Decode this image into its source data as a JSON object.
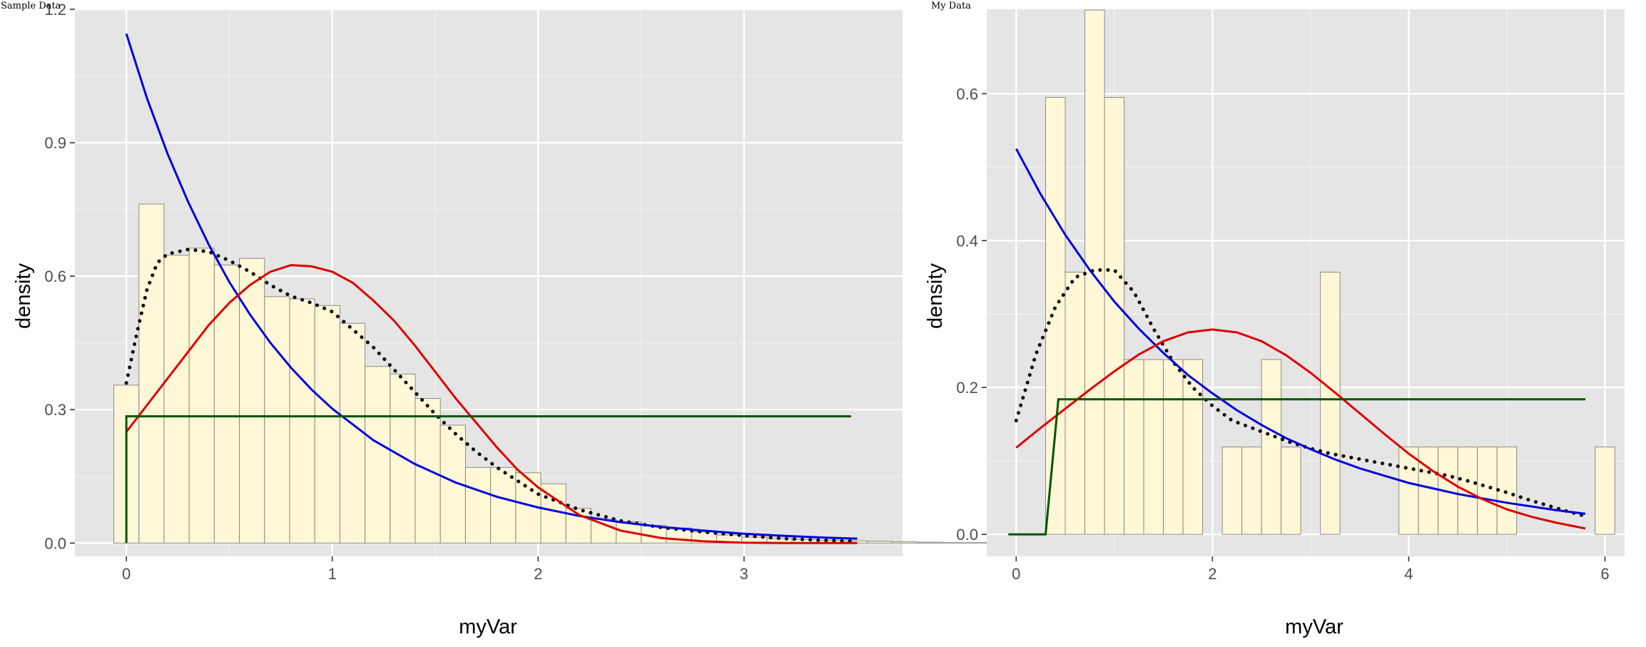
{
  "chart_data": [
    {
      "type": "bar",
      "title": "Sample Data",
      "xlabel": "myVar",
      "ylabel": "density",
      "xlim": [
        -0.25,
        3.77
      ],
      "ylim": [
        -0.03,
        1.2
      ],
      "xticks": [
        0,
        1,
        2,
        3
      ],
      "yticks": [
        0.0,
        0.3,
        0.6,
        0.9,
        1.2
      ],
      "ytick_labels": [
        "0.0",
        "0.3",
        "0.6",
        "0.9",
        "1.2"
      ],
      "grid": true,
      "histogram": {
        "bin_width": 0.122,
        "first_bin_left": -0.061,
        "values": [
          0.355,
          0.762,
          0.647,
          0.663,
          0.625,
          0.64,
          0.554,
          0.549,
          0.534,
          0.494,
          0.397,
          0.38,
          0.325,
          0.265,
          0.17,
          0.17,
          0.158,
          0.133,
          0.078,
          0.053,
          0.048,
          0.04,
          0.034,
          0.025,
          0.018,
          0.013,
          0.01,
          0.008,
          0.006,
          0.005,
          0.004,
          0.003,
          0.002,
          0.001,
          0.001,
          0.001,
          0.0,
          0.0,
          0.0,
          0.0,
          0.0,
          0.0,
          0.004
        ]
      },
      "series": [
        {
          "color": "#000000",
          "style": "dotted",
          "x": [
            0.0,
            0.05,
            0.1,
            0.15,
            0.2,
            0.3,
            0.4,
            0.5,
            0.6,
            0.7,
            0.8,
            0.9,
            1.0,
            1.1,
            1.2,
            1.3,
            1.4,
            1.5,
            1.6,
            1.7,
            1.8,
            1.9,
            2.0,
            2.2,
            2.4,
            2.6,
            2.8,
            3.0,
            3.2,
            3.4,
            3.55
          ],
          "y": [
            0.36,
            0.47,
            0.57,
            0.63,
            0.65,
            0.66,
            0.655,
            0.635,
            0.61,
            0.58,
            0.555,
            0.54,
            0.52,
            0.48,
            0.44,
            0.39,
            0.34,
            0.29,
            0.245,
            0.205,
            0.17,
            0.14,
            0.11,
            0.075,
            0.05,
            0.035,
            0.025,
            0.017,
            0.01,
            0.006,
            0.004
          ]
        },
        {
          "color": "#0000dd",
          "style": "solid",
          "x": [
            0.0,
            0.1,
            0.2,
            0.3,
            0.4,
            0.5,
            0.6,
            0.7,
            0.8,
            0.9,
            1.0,
            1.2,
            1.4,
            1.6,
            1.8,
            2.0,
            2.2,
            2.4,
            2.6,
            2.8,
            3.0,
            3.2,
            3.4,
            3.55
          ],
          "y": [
            1.145,
            1.0,
            0.875,
            0.767,
            0.671,
            0.587,
            0.514,
            0.45,
            0.394,
            0.345,
            0.302,
            0.231,
            0.178,
            0.136,
            0.104,
            0.08,
            0.061,
            0.047,
            0.036,
            0.028,
            0.021,
            0.016,
            0.012,
            0.01
          ]
        },
        {
          "color": "#dd0000",
          "style": "solid",
          "x": [
            0.0,
            0.1,
            0.2,
            0.3,
            0.4,
            0.5,
            0.6,
            0.7,
            0.8,
            0.9,
            1.0,
            1.1,
            1.2,
            1.3,
            1.4,
            1.5,
            1.6,
            1.7,
            1.8,
            1.9,
            2.0,
            2.2,
            2.4,
            2.6,
            2.8,
            3.0,
            3.2,
            3.4,
            3.55
          ],
          "y": [
            0.25,
            0.31,
            0.37,
            0.43,
            0.49,
            0.54,
            0.58,
            0.61,
            0.625,
            0.622,
            0.61,
            0.585,
            0.545,
            0.5,
            0.445,
            0.385,
            0.325,
            0.27,
            0.215,
            0.165,
            0.125,
            0.063,
            0.028,
            0.011,
            0.004,
            0.001,
            0.0,
            0.0,
            0.0
          ]
        },
        {
          "color": "#005500",
          "style": "solid",
          "x": [
            0.0,
            0.0,
            3.52
          ],
          "y": [
            0.0,
            0.285,
            0.285
          ]
        }
      ]
    },
    {
      "type": "bar",
      "title": "My Data",
      "xlabel": "myVar",
      "ylabel": "density",
      "xlim": [
        -0.3,
        6.2
      ],
      "ylim": [
        -0.03,
        0.715
      ],
      "xticks": [
        0,
        2,
        4,
        6
      ],
      "yticks": [
        0.0,
        0.2,
        0.4,
        0.6
      ],
      "ytick_labels": [
        "0.0",
        "0.2",
        "0.4",
        "0.6"
      ],
      "grid": true,
      "histogram": {
        "bin_width": 0.2,
        "first_bin_left": 0.3,
        "values": [
          0.595,
          0.357,
          0.714,
          0.595,
          0.238,
          0.238,
          0.238,
          0.238,
          0.0,
          0.119,
          0.119,
          0.238,
          0.119,
          0.0,
          0.357,
          0.0,
          0.0,
          0.0,
          0.119,
          0.119,
          0.119,
          0.119,
          0.119,
          0.119,
          0.0,
          0.0,
          0.0,
          0.0,
          0.119
        ]
      },
      "series": [
        {
          "color": "#000000",
          "style": "dotted",
          "x": [
            0.0,
            0.2,
            0.4,
            0.6,
            0.8,
            1.0,
            1.2,
            1.4,
            1.6,
            1.8,
            2.0,
            2.2,
            2.4,
            2.6,
            2.8,
            3.0,
            3.2,
            3.4,
            3.6,
            3.8,
            4.0,
            4.2,
            4.4,
            4.6,
            4.8,
            5.0,
            5.2,
            5.4,
            5.6,
            5.8
          ],
          "y": [
            0.155,
            0.245,
            0.31,
            0.35,
            0.36,
            0.36,
            0.33,
            0.28,
            0.235,
            0.2,
            0.175,
            0.155,
            0.145,
            0.135,
            0.125,
            0.117,
            0.11,
            0.105,
            0.1,
            0.095,
            0.09,
            0.085,
            0.08,
            0.073,
            0.065,
            0.057,
            0.048,
            0.04,
            0.032,
            0.025
          ]
        },
        {
          "color": "#0000dd",
          "style": "solid",
          "x": [
            0.0,
            0.25,
            0.5,
            0.75,
            1.0,
            1.25,
            1.5,
            1.75,
            2.0,
            2.25,
            2.5,
            2.75,
            3.0,
            3.25,
            3.5,
            3.75,
            4.0,
            4.5,
            5.0,
            5.5,
            5.8
          ],
          "y": [
            0.525,
            0.463,
            0.408,
            0.36,
            0.317,
            0.28,
            0.247,
            0.217,
            0.192,
            0.169,
            0.149,
            0.131,
            0.116,
            0.102,
            0.09,
            0.08,
            0.07,
            0.055,
            0.043,
            0.033,
            0.028
          ]
        },
        {
          "color": "#dd0000",
          "style": "solid",
          "x": [
            0.0,
            0.25,
            0.5,
            0.75,
            1.0,
            1.25,
            1.5,
            1.75,
            2.0,
            2.25,
            2.5,
            2.75,
            3.0,
            3.25,
            3.5,
            3.75,
            4.0,
            4.25,
            4.5,
            4.75,
            5.0,
            5.25,
            5.5,
            5.8
          ],
          "y": [
            0.118,
            0.145,
            0.171,
            0.197,
            0.222,
            0.245,
            0.263,
            0.275,
            0.279,
            0.275,
            0.263,
            0.244,
            0.22,
            0.193,
            0.165,
            0.137,
            0.11,
            0.086,
            0.065,
            0.048,
            0.034,
            0.024,
            0.016,
            0.008
          ]
        },
        {
          "color": "#005500",
          "style": "solid",
          "x": [
            -0.08,
            0.3,
            0.43,
            5.8
          ],
          "y": [
            0.0,
            0.0,
            0.184,
            0.184
          ]
        }
      ]
    }
  ]
}
